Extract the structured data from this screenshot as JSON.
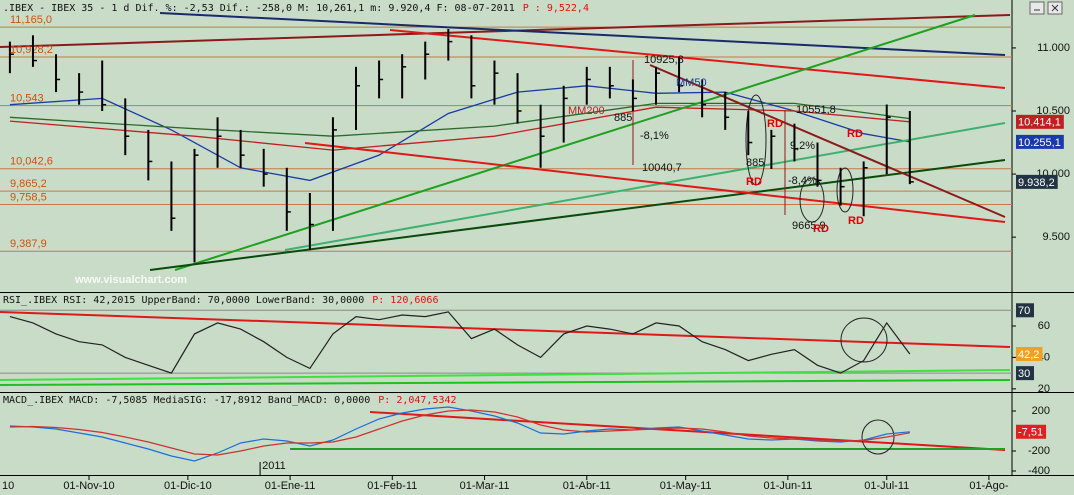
{
  "header": {
    "title": ".IBEX - IBEX 35 - 1 d Dif. %: -2,53 Dif.: -258,0 M: 10,261,1 m: 9.920,4 F: 08-07-2011",
    "extra": "P : 9,522,4"
  },
  "chart_data": [
    {
      "type": "ohlc",
      "watermark": "www.visualchart.com",
      "year_label": "2011",
      "xlim": [
        "2010-10-05",
        "2011-08-08"
      ],
      "xticks": [
        {
          "value": "2010-10-01",
          "label": "10"
        },
        {
          "value": "2010-11-01",
          "label": "01-Nov-10"
        },
        {
          "value": "2010-12-01",
          "label": "01-Dic-10"
        },
        {
          "value": "2011-01-01",
          "label": "01-Ene-11"
        },
        {
          "value": "2011-02-01",
          "label": "01-Feb-11"
        },
        {
          "value": "2011-03-01",
          "label": "01-Mar-11"
        },
        {
          "value": "2011-04-01",
          "label": "01-Abr-11"
        },
        {
          "value": "2011-05-01",
          "label": "01-May-11"
        },
        {
          "value": "2011-06-01",
          "label": "01-Jun-11"
        },
        {
          "value": "2011-07-01",
          "label": "01-Jul-11"
        },
        {
          "value": "2011-08-01",
          "label": "01-Ago-"
        }
      ],
      "ylim": [
        9065,
        11380
      ],
      "yticks": [
        {
          "value": 11000,
          "label": "11.000"
        },
        {
          "value": 10500,
          "label": "10.500"
        },
        {
          "value": 10000,
          "label": "10.000"
        },
        {
          "value": 9500,
          "label": "9.500"
        }
      ],
      "color": "#000000",
      "close_color": "#223344",
      "close_label": "9.938,2",
      "x": [
        "2010-10-08",
        "2010-10-15",
        "2010-10-22",
        "2010-10-29",
        "2010-11-05",
        "2010-11-12",
        "2010-11-19",
        "2010-11-26",
        "2010-12-03",
        "2010-12-10",
        "2010-12-17",
        "2010-12-24",
        "2010-12-31",
        "2011-01-07",
        "2011-01-14",
        "2011-01-21",
        "2011-01-28",
        "2011-02-04",
        "2011-02-11",
        "2011-02-18",
        "2011-02-25",
        "2011-03-04",
        "2011-03-11",
        "2011-03-18",
        "2011-03-25",
        "2011-04-01",
        "2011-04-08",
        "2011-04-15",
        "2011-04-22",
        "2011-04-29",
        "2011-05-06",
        "2011-05-13",
        "2011-05-20",
        "2011-05-27",
        "2011-06-03",
        "2011-06-10",
        "2011-06-17",
        "2011-06-24",
        "2011-07-01",
        "2011-07-08"
      ],
      "high": [
        11050,
        11100,
        10950,
        10800,
        10900,
        10600,
        10350,
        10100,
        10200,
        10450,
        10350,
        10200,
        10050,
        9850,
        10450,
        10850,
        10900,
        10950,
        11050,
        11150,
        11100,
        10900,
        10800,
        10550,
        10700,
        10850,
        10850,
        10750,
        10850,
        10925.8,
        10750,
        10650,
        10500,
        10350,
        10400,
        10250,
        10050,
        10100,
        10551.8,
        10500
      ],
      "low": [
        10800,
        10850,
        10650,
        10550,
        10500,
        10150,
        9950,
        9550,
        9300,
        10050,
        10050,
        9900,
        9550,
        9400,
        9550,
        10350,
        10600,
        10600,
        10750,
        10900,
        10600,
        10550,
        10400,
        10050,
        10250,
        10550,
        10600,
        10500,
        10550,
        10650,
        10450,
        10350,
        10150,
        10040.7,
        10100,
        9900,
        9750,
        9665.9,
        10000,
        9920.4
      ],
      "close": [
        10950,
        10900,
        10750,
        10650,
        10550,
        10300,
        10100,
        9650,
        10150,
        10300,
        10150,
        10000,
        9700,
        9600,
        10350,
        10700,
        10750,
        10850,
        10950,
        11050,
        10700,
        10800,
        10500,
        10300,
        10600,
        10750,
        10700,
        10600,
        10800,
        10700,
        10550,
        10450,
        10250,
        10300,
        10200,
        9950,
        9900,
        10050,
        10450,
        9938.2
      ],
      "levels": [
        {
          "value": 11165.0,
          "label": "11,165,0"
        },
        {
          "value": 10928.2,
          "label": "10,928,2"
        },
        {
          "value": 10543,
          "label": "10,543"
        },
        {
          "value": 10042.6,
          "label": "10,042,6"
        },
        {
          "value": 9865.2,
          "label": "9,865,2"
        },
        {
          "value": 9758.5,
          "label": "9,758,5"
        },
        {
          "value": 9387.9,
          "label": "9,387,9"
        }
      ],
      "series": [
        {
          "name": "MM50",
          "color": "#1a3aa8",
          "last_label": "10.255,1",
          "x": [
            "2010-10-08",
            "2010-11-05",
            "2010-11-26",
            "2010-12-17",
            "2011-01-07",
            "2011-01-28",
            "2011-02-18",
            "2011-03-11",
            "2011-04-01",
            "2011-04-22",
            "2011-05-13",
            "2011-06-03",
            "2011-06-24",
            "2011-07-08"
          ],
          "values": [
            10550,
            10600,
            10350,
            10050,
            9950,
            10150,
            10480,
            10650,
            10700,
            10640,
            10650,
            10500,
            10320,
            10255.1
          ]
        },
        {
          "name": "MM200",
          "color": "#c02020",
          "last_label": "10.414,1",
          "x": [
            "2010-10-08",
            "2010-12-03",
            "2011-01-14",
            "2011-03-04",
            "2011-04-22",
            "2011-06-03",
            "2011-07-08"
          ],
          "values": [
            10420,
            10300,
            10190,
            10300,
            10530,
            10500,
            10414.1
          ]
        },
        {
          "color": "#2c6a2c",
          "x": [
            "2010-10-08",
            "2010-12-03",
            "2011-01-14",
            "2011-03-04",
            "2011-04-22",
            "2011-06-03",
            "2011-07-08"
          ],
          "values": [
            10450,
            10360,
            10300,
            10380,
            10560,
            10560,
            10440
          ]
        }
      ],
      "annotations": [
        "10925,8",
        "-8,1%",
        "10040,7",
        "885",
        "10551,8",
        "9,2%",
        "-8,4%",
        "885",
        "9665,9",
        "RD",
        "RD",
        "RD",
        "RD",
        "RD"
      ]
    },
    {
      "type": "line",
      "title": "RSI_.IBEX RSI: 42,2015 UpperBand: 70,0000 LowerBand: 30,0000",
      "extra": "P: 120,6066",
      "ylim": [
        18,
        81
      ],
      "yticks": [
        60,
        40,
        20
      ],
      "bands": [
        70,
        30
      ],
      "series": [
        {
          "color": "#222222",
          "last_label": "42,2",
          "label_color": "#f0a020",
          "values": [
            66,
            62,
            55,
            50,
            48,
            40,
            35,
            30,
            55,
            62,
            58,
            50,
            40,
            33,
            55,
            66,
            64,
            67,
            66,
            69,
            52,
            58,
            48,
            40,
            55,
            60,
            58,
            55,
            62,
            60,
            50,
            45,
            38,
            42,
            45,
            35,
            30,
            38,
            62,
            42.2
          ]
        }
      ]
    },
    {
      "type": "line",
      "title": "MACD_.IBEX MACD: -7,5085 MediaSIG: -17,8912 Band_MACD: 0,0000",
      "extra": "P: 2,047,5342",
      "ylim": [
        -440,
        380
      ],
      "yticks": [
        200,
        -200,
        -400
      ],
      "series": [
        {
          "color": "#1c6fd8",
          "last_label": "-7,51",
          "label_color": "#e02020",
          "values": [
            50,
            40,
            20,
            -20,
            -60,
            -120,
            -180,
            -250,
            -300,
            -220,
            -120,
            -80,
            -100,
            -150,
            -90,
            20,
            120,
            180,
            220,
            240,
            200,
            150,
            80,
            -20,
            -30,
            0,
            20,
            10,
            30,
            40,
            0,
            -40,
            -80,
            -90,
            -80,
            -100,
            -110,
            -90,
            -30,
            -7.51
          ]
        },
        {
          "color": "#d03030",
          "values": [
            40,
            45,
            35,
            15,
            -15,
            -60,
            -110,
            -170,
            -230,
            -240,
            -200,
            -150,
            -120,
            -120,
            -110,
            -60,
            20,
            100,
            160,
            200,
            210,
            190,
            140,
            60,
            10,
            -10,
            0,
            10,
            20,
            30,
            20,
            -10,
            -50,
            -70,
            -80,
            -90,
            -100,
            -95,
            -60,
            -17.89
          ]
        }
      ]
    }
  ]
}
